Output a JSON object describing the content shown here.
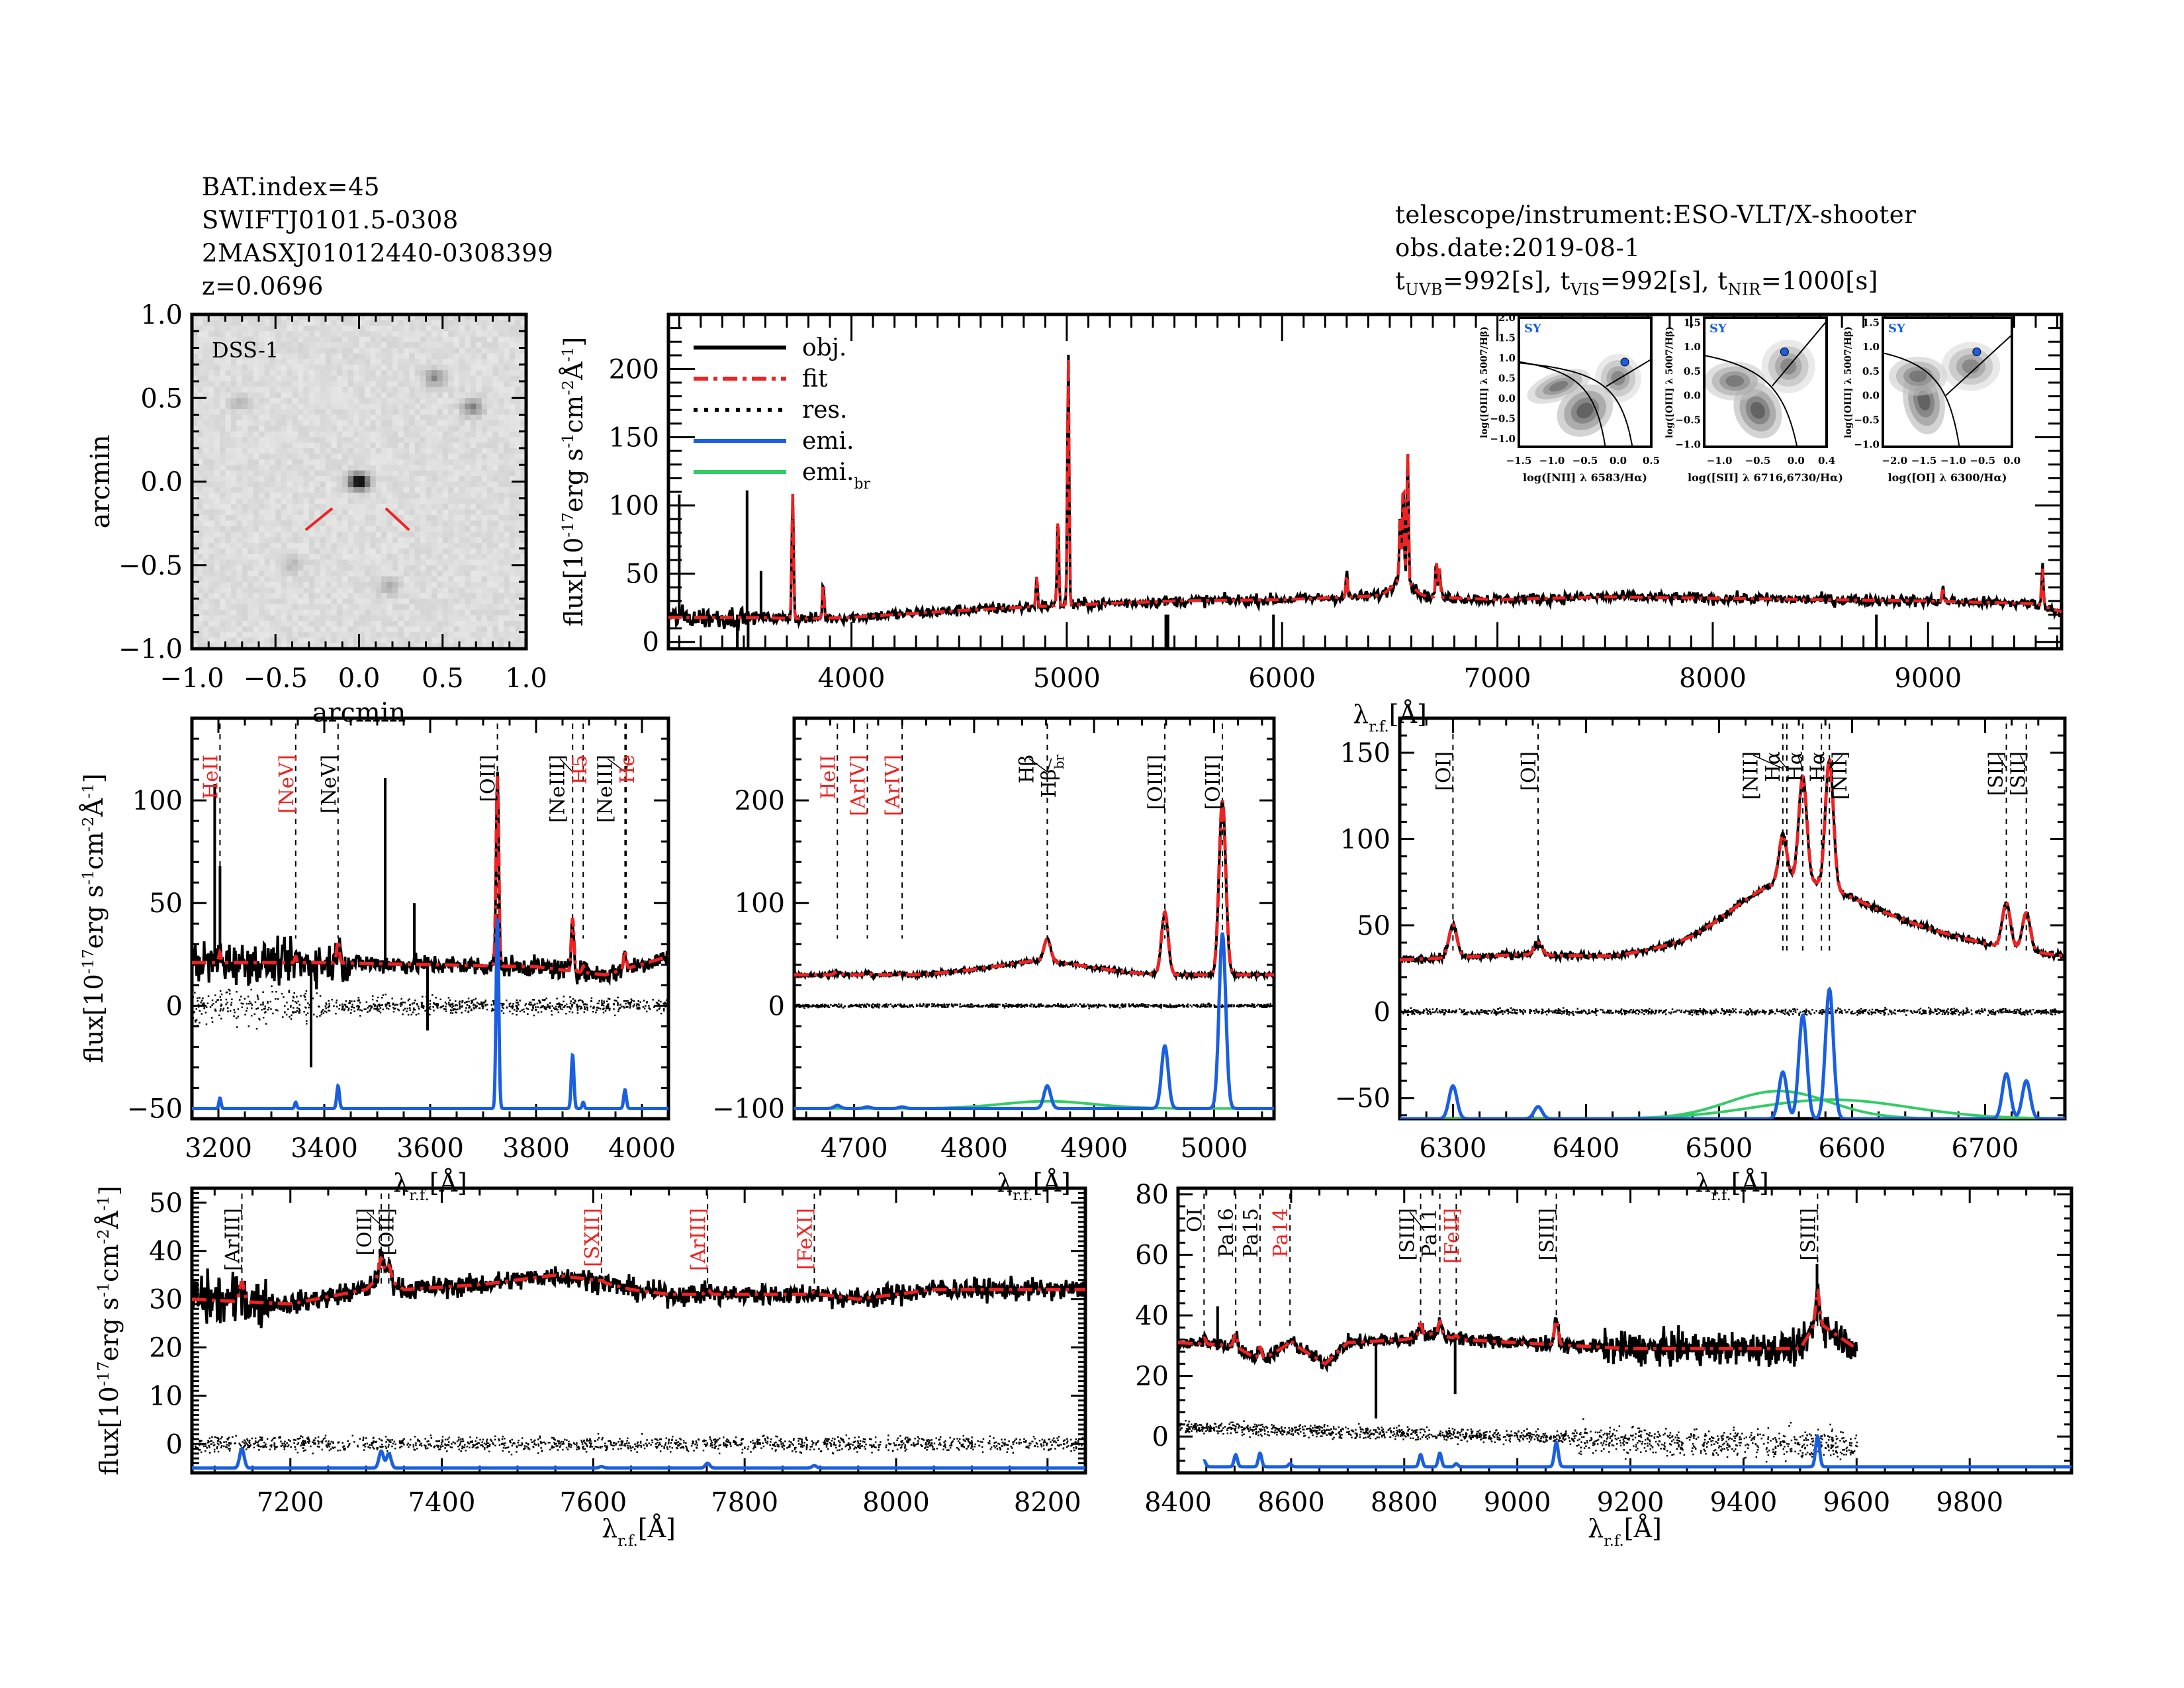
{
  "header": {
    "left": [
      "BAT.index=45",
      "SWIFTJ0101.5-0308",
      "2MASXJ01012440-0308399",
      "z=0.0696"
    ],
    "right": {
      "instrument": "telescope/instrument:ESO-VLT/X-shooter",
      "date": "obs.date:2019-08-1",
      "exposure": {
        "t_uvb": "992[s]",
        "t_vis": "992[s]",
        "t_nir": "1000[s]"
      }
    }
  },
  "colors": {
    "obj": "#000000",
    "fit": "#ee2222",
    "res": "#000000",
    "emi": "#1a5fe0",
    "emi_br": "#33cc66",
    "label_red": "#ee2222",
    "bpt_point": "#1a5fe0"
  },
  "flux_label": "flux[10^-17 erg s^-1 cm^-2 Å^-1]",
  "wave_label": "λr.f.[Å]",
  "chart_data": [
    {
      "id": "dss-image",
      "type": "heatmap",
      "title": "DSS-1",
      "xlabel": "arcmin",
      "ylabel": "arcmin",
      "xlim": [
        -1.0,
        1.0
      ],
      "ylim": [
        -1.0,
        1.0
      ],
      "xticks": [
        "-1.0",
        "-0.5",
        "0.0",
        "0.5",
        "1.0"
      ],
      "yticks": [
        "-1.0",
        "-0.5",
        "0.0",
        "0.5",
        "1.0"
      ],
      "sources": [
        {
          "x": 0.0,
          "y": 0.0,
          "strength": 1.0
        },
        {
          "x": 0.45,
          "y": 0.62,
          "strength": 0.35
        },
        {
          "x": 0.68,
          "y": 0.44,
          "strength": 0.4
        },
        {
          "x": -0.4,
          "y": -0.5,
          "strength": 0.15
        },
        {
          "x": 0.18,
          "y": -0.63,
          "strength": 0.2
        },
        {
          "x": -0.72,
          "y": 0.47,
          "strength": 0.15
        }
      ],
      "marker": "red ticks pointing to target"
    },
    {
      "id": "full-spectrum",
      "type": "line",
      "xlim": [
        3150,
        9620
      ],
      "ylim": [
        -5,
        240
      ],
      "xticks": [
        4000,
        5000,
        6000,
        7000,
        8000,
        9000
      ],
      "yticks": [
        0,
        50,
        100,
        150,
        200
      ],
      "xlabel": "λr.f.[Å]",
      "ylabel": "flux[10^-17 erg s^-1 cm^-2 Å^-1]",
      "legend": {
        "placement": "top-left",
        "entries": [
          {
            "label": "obj.",
            "style": "solid",
            "color": "#000000"
          },
          {
            "label": "fit",
            "style": "dash-dot",
            "color": "#ee2222"
          },
          {
            "label": "res.",
            "style": "dotted",
            "color": "#000000"
          },
          {
            "label": "emi.",
            "style": "solid",
            "color": "#1a5fe0"
          },
          {
            "label": "emi.br",
            "style": "solid",
            "color": "#33cc66"
          }
        ]
      },
      "continuum": [
        [
          3150,
          18
        ],
        [
          3500,
          18
        ],
        [
          3800,
          17
        ],
        [
          4000,
          18
        ],
        [
          4500,
          23
        ],
        [
          5000,
          27
        ],
        [
          5500,
          30
        ],
        [
          6000,
          31
        ],
        [
          6500,
          34
        ],
        [
          7000,
          31
        ],
        [
          7500,
          33
        ],
        [
          8000,
          32
        ],
        [
          8500,
          31
        ],
        [
          9000,
          30
        ],
        [
          9500,
          28
        ],
        [
          9620,
          22
        ]
      ],
      "lines": [
        {
          "x": 3727,
          "peak": 110
        },
        {
          "x": 3869,
          "peak": 45
        },
        {
          "x": 4861,
          "peak": 48
        },
        {
          "x": 4959,
          "peak": 95
        },
        {
          "x": 5007,
          "peak": 212
        },
        {
          "x": 6300,
          "peak": 50
        },
        {
          "x": 6548,
          "peak": 80
        },
        {
          "x": 6563,
          "peak": 108
        },
        {
          "x": 6583,
          "peak": 130
        },
        {
          "x": 6716,
          "peak": 60
        },
        {
          "x": 6731,
          "peak": 55
        },
        {
          "x": 9069,
          "peak": 40
        },
        {
          "x": 9531,
          "peak": 55
        }
      ],
      "spikes": [
        {
          "x": 3200,
          "value": 108
        },
        {
          "x": 3515,
          "value": 111
        },
        {
          "x": 3580,
          "value": 52
        }
      ]
    },
    {
      "id": "bpt-nii",
      "type": "scatter",
      "xlabel": "log([NII] λ 6583/Hα)",
      "ylabel": "log([OIII] λ 5007/Hβ)",
      "xlim": [
        -1.5,
        0.5
      ],
      "ylim": [
        -1.2,
        2.0
      ],
      "xticks": [
        "-1.5",
        "-1.0",
        "-0.5",
        "0.0",
        "0.5"
      ],
      "yticks": [
        "-1.0",
        "-0.5",
        "0.0",
        "0.5",
        "1.0",
        "1.5",
        "2.0"
      ],
      "class_label": "SY",
      "point": {
        "x": 0.1,
        "y": 0.9
      }
    },
    {
      "id": "bpt-sii",
      "type": "scatter",
      "xlabel": "log([SII] λ 6716,6730/Hα)",
      "ylabel": "log([OIII] λ 5007/Hβ)",
      "xlim": [
        -1.2,
        0.4
      ],
      "ylim": [
        -1.05,
        1.6
      ],
      "xticks": [
        "-1.0",
        "-0.5",
        "0.0",
        "0.4"
      ],
      "yticks": [
        "-1.0",
        "-0.5",
        "0.0",
        "0.5",
        "1.0",
        "1.5"
      ],
      "class_label": "SY",
      "point": {
        "x": -0.15,
        "y": 0.9
      }
    },
    {
      "id": "bpt-oi",
      "type": "scatter",
      "xlabel": "log([OI] λ 6300/Hα)",
      "ylabel": "log([OIII] λ 5007/Hβ)",
      "xlim": [
        -2.2,
        0.0
      ],
      "ylim": [
        -1.05,
        1.6
      ],
      "xticks": [
        "-2.0",
        "-1.5",
        "-1.0",
        "-0.5",
        "0.0"
      ],
      "yticks": [
        "-1.0",
        "-0.5",
        "0.0",
        "0.5",
        "1.0",
        "1.5"
      ],
      "class_label": "SY",
      "point": {
        "x": -0.6,
        "y": 0.9
      }
    },
    {
      "id": "zoom-3200-4050",
      "type": "line",
      "xlim": [
        3150,
        4050
      ],
      "ylim": [
        -55,
        140
      ],
      "xticks": [
        3200,
        3400,
        3600,
        3800,
        4000
      ],
      "yticks": [
        -50,
        0,
        50,
        100
      ],
      "xlabel": "λr.f.[Å]",
      "ylabel": "flux[10^-17 erg s^-1 cm^-2 Å^-1]",
      "continuum": [
        [
          3150,
          21
        ],
        [
          3400,
          21
        ],
        [
          3600,
          20
        ],
        [
          3800,
          19
        ],
        [
          3930,
          15
        ],
        [
          4050,
          24
        ]
      ],
      "emi_offset": -50,
      "line_labels": [
        {
          "label": "HeII",
          "x": 3203,
          "red": true
        },
        {
          "label": "[NeV]",
          "x": 3346,
          "red": true
        },
        {
          "label": "[NeV]",
          "x": 3426,
          "red": false
        },
        {
          "label": "[OII]",
          "x": 3727,
          "red": false
        },
        {
          "label": "[NeIII]",
          "x": 3869,
          "red": false
        },
        {
          "label": "H5",
          "x": 3889,
          "red": true
        },
        {
          "label": "[NeIII]",
          "x": 3968,
          "red": false
        },
        {
          "label": "He",
          "x": 3970,
          "red": true
        }
      ],
      "emission": [
        {
          "x": 3203,
          "amp": 5,
          "sigma": 2
        },
        {
          "x": 3346,
          "amp": 3,
          "sigma": 2
        },
        {
          "x": 3426,
          "amp": 11,
          "sigma": 2.5
        },
        {
          "x": 3727,
          "amp": 93,
          "sigma": 2.5
        },
        {
          "x": 3869,
          "amp": 26,
          "sigma": 2.5
        },
        {
          "x": 3889,
          "amp": 3,
          "sigma": 2
        },
        {
          "x": 3968,
          "amp": 9,
          "sigma": 2.5
        }
      ],
      "spikes": [
        {
          "x": 3193,
          "value": 108
        },
        {
          "x": 3203,
          "value": 68
        },
        {
          "x": 3515,
          "value": 111
        },
        {
          "x": 3570,
          "value": 50
        },
        {
          "x": 3375,
          "value": -30
        },
        {
          "x": 3595,
          "value": -12
        }
      ]
    },
    {
      "id": "zoom-hbeta",
      "type": "line",
      "xlim": [
        4650,
        5050
      ],
      "ylim": [
        -110,
        280
      ],
      "xticks": [
        4700,
        4800,
        4900,
        5000
      ],
      "yticks": [
        -100,
        0,
        100,
        200
      ],
      "xlabel": "λr.f.[Å]",
      "ylabel": "",
      "continuum": [
        [
          4650,
          30
        ],
        [
          4750,
          30
        ],
        [
          4850,
          37
        ],
        [
          4900,
          33
        ],
        [
          4950,
          30
        ],
        [
          5050,
          30
        ]
      ],
      "emi_offset": -100,
      "line_labels": [
        {
          "label": "HeII",
          "x": 4686,
          "red": true
        },
        {
          "label": "[ArIV]",
          "x": 4711,
          "red": true
        },
        {
          "label": "[ArIV]",
          "x": 4740,
          "red": true
        },
        {
          "label": "Hβ",
          "x": 4861,
          "red": false
        },
        {
          "label": "Hβbr",
          "x": 4861,
          "red": false
        },
        {
          "label": "[OIII]",
          "x": 4959,
          "red": false
        },
        {
          "label": "[OIII]",
          "x": 5007,
          "red": false
        }
      ],
      "emission": [
        {
          "x": 4686,
          "amp": 3,
          "sigma": 2.5
        },
        {
          "x": 4711,
          "amp": 1.5,
          "sigma": 2.5
        },
        {
          "x": 4740,
          "amp": 1.5,
          "sigma": 2.5
        },
        {
          "x": 4861,
          "amp": 22,
          "sigma": 2.8
        },
        {
          "x": 4959,
          "amp": 61,
          "sigma": 2.8
        },
        {
          "x": 5007,
          "amp": 170,
          "sigma": 2.8
        }
      ],
      "broad": [
        {
          "x": 4861,
          "amp": 7,
          "sigma": 38
        }
      ]
    },
    {
      "id": "zoom-halpha",
      "type": "line",
      "xlim": [
        6260,
        6760
      ],
      "ylim": [
        -62,
        170
      ],
      "xticks": [
        6300,
        6400,
        6500,
        6600,
        6700
      ],
      "yticks": [
        -50,
        0,
        50,
        100,
        150
      ],
      "xlabel": "λr.f.[Å]",
      "ylabel": "",
      "continuum": [
        [
          6260,
          30
        ],
        [
          6350,
          33
        ],
        [
          6420,
          32
        ],
        [
          6480,
          38
        ],
        [
          6530,
          48
        ],
        [
          6560,
          52
        ],
        [
          6600,
          50
        ],
        [
          6650,
          44
        ],
        [
          6700,
          38
        ],
        [
          6760,
          32
        ]
      ],
      "emi_offset": -62,
      "line_labels": [
        {
          "label": "[OI]",
          "x": 6300,
          "red": false
        },
        {
          "label": "[OI]",
          "x": 6364,
          "red": false
        },
        {
          "label": "[NII]",
          "x": 6548,
          "red": false
        },
        {
          "label": "Hα",
          "x": 6551,
          "red": false
        },
        {
          "label": "Hα",
          "x": 6563,
          "red": false
        },
        {
          "label": "Hα",
          "x": 6577,
          "red": false
        },
        {
          "label": "[NII]",
          "x": 6583,
          "red": false
        },
        {
          "label": "[SII]",
          "x": 6716,
          "red": false
        },
        {
          "label": "[SII]",
          "x": 6731,
          "red": false
        }
      ],
      "emission": [
        {
          "x": 6300,
          "amp": 19,
          "sigma": 3
        },
        {
          "x": 6364,
          "amp": 7,
          "sigma": 3
        },
        {
          "x": 6548,
          "amp": 27,
          "sigma": 3
        },
        {
          "x": 6563,
          "amp": 60,
          "sigma": 3
        },
        {
          "x": 6583,
          "amp": 75,
          "sigma": 3
        },
        {
          "x": 6716,
          "amp": 26,
          "sigma": 3
        },
        {
          "x": 6731,
          "amp": 22,
          "sigma": 3
        }
      ],
      "broad": [
        {
          "x": 6545,
          "amp": 16,
          "sigma": 38
        },
        {
          "x": 6585,
          "amp": 11,
          "sigma": 58
        }
      ]
    },
    {
      "id": "zoom-7100-8250",
      "type": "line",
      "xlim": [
        7070,
        8250
      ],
      "ylim": [
        -6,
        53
      ],
      "xticks": [
        7200,
        7400,
        7600,
        7800,
        8000,
        8200
      ],
      "yticks": [
        0,
        10,
        20,
        30,
        40,
        50
      ],
      "xlabel": "λr.f.[Å]",
      "ylabel": "flux[10^-17 erg s^-1 cm^-2 Å^-1]",
      "continuum": [
        [
          7070,
          30
        ],
        [
          7200,
          29
        ],
        [
          7300,
          32
        ],
        [
          7320,
          35
        ],
        [
          7350,
          32
        ],
        [
          7450,
          33
        ],
        [
          7550,
          35
        ],
        [
          7600,
          34
        ],
        [
          7650,
          32
        ],
        [
          7700,
          31
        ],
        [
          7800,
          31
        ],
        [
          7900,
          31
        ],
        [
          7950,
          30
        ],
        [
          8050,
          32
        ],
        [
          8250,
          32
        ]
      ],
      "emi_offset": -5,
      "line_labels": [
        {
          "label": "[ArIII]",
          "x": 7136,
          "red": false
        },
        {
          "label": "[OII]",
          "x": 7320,
          "red": false
        },
        {
          "label": "[OII]",
          "x": 7330,
          "red": false
        },
        {
          "label": "[SXII]",
          "x": 7611,
          "red": true
        },
        {
          "label": "[ArIII]",
          "x": 7751,
          "red": true
        },
        {
          "label": "[FeXI]",
          "x": 7892,
          "red": true
        }
      ],
      "emission": [
        {
          "x": 7136,
          "amp": 4,
          "sigma": 3
        },
        {
          "x": 7320,
          "amp": 3.5,
          "sigma": 3
        },
        {
          "x": 7330,
          "amp": 3,
          "sigma": 3
        },
        {
          "x": 7611,
          "amp": 0.3,
          "sigma": 3
        },
        {
          "x": 7751,
          "amp": 1,
          "sigma": 3
        },
        {
          "x": 7892,
          "amp": 0.5,
          "sigma": 3
        }
      ]
    },
    {
      "id": "zoom-8400-9980",
      "type": "line",
      "xlim": [
        8400,
        9980
      ],
      "ylim": [
        -12,
        82
      ],
      "xticks": [
        8400,
        8600,
        8800,
        9000,
        9200,
        9400,
        9600,
        9800
      ],
      "yticks": [
        0,
        20,
        40,
        60,
        80
      ],
      "xlabel": "λr.f.[Å]",
      "ylabel": "",
      "continuum": [
        [
          8400,
          31
        ],
        [
          8500,
          30
        ],
        [
          8545,
          25
        ],
        [
          8600,
          31
        ],
        [
          8660,
          24
        ],
        [
          8700,
          31
        ],
        [
          8800,
          32
        ],
        [
          8850,
          34
        ],
        [
          8900,
          32
        ],
        [
          9000,
          31
        ],
        [
          9100,
          30
        ],
        [
          9200,
          29
        ],
        [
          9400,
          29
        ],
        [
          9500,
          29
        ],
        [
          9530,
          38
        ],
        [
          9600,
          29
        ]
      ],
      "obj_end": 9600,
      "emi_offset": -10,
      "line_labels": [
        {
          "label": "OI",
          "x": 8446,
          "red": false
        },
        {
          "label": "Pa16",
          "x": 8502,
          "red": false
        },
        {
          "label": "Pa15",
          "x": 8545,
          "red": false
        },
        {
          "label": "Pa14",
          "x": 8598,
          "red": true
        },
        {
          "label": "[SIII]",
          "x": 8829,
          "red": false
        },
        {
          "label": "Pa11",
          "x": 8863,
          "red": false
        },
        {
          "label": "[FeII]",
          "x": 8892,
          "red": true
        },
        {
          "label": "[SIII]",
          "x": 9069,
          "red": false
        },
        {
          "label": "[SIII]",
          "x": 9531,
          "red": false
        }
      ],
      "emission": [
        {
          "x": 8446,
          "amp": 2,
          "sigma": 3
        },
        {
          "x": 8502,
          "amp": 4,
          "sigma": 3
        },
        {
          "x": 8545,
          "amp": 4.5,
          "sigma": 3
        },
        {
          "x": 8598,
          "amp": 1,
          "sigma": 3
        },
        {
          "x": 8829,
          "amp": 4,
          "sigma": 3
        },
        {
          "x": 8863,
          "amp": 4.5,
          "sigma": 3
        },
        {
          "x": 8892,
          "amp": 1,
          "sigma": 3
        },
        {
          "x": 9069,
          "amp": 8,
          "sigma": 3.5
        },
        {
          "x": 9531,
          "amp": 10,
          "sigma": 3.5
        }
      ],
      "spikes": [
        {
          "x": 8470,
          "value": 43
        },
        {
          "x": 8750,
          "value": 6
        },
        {
          "x": 8890,
          "value": 14
        },
        {
          "x": 9530,
          "value": 57
        }
      ]
    }
  ]
}
